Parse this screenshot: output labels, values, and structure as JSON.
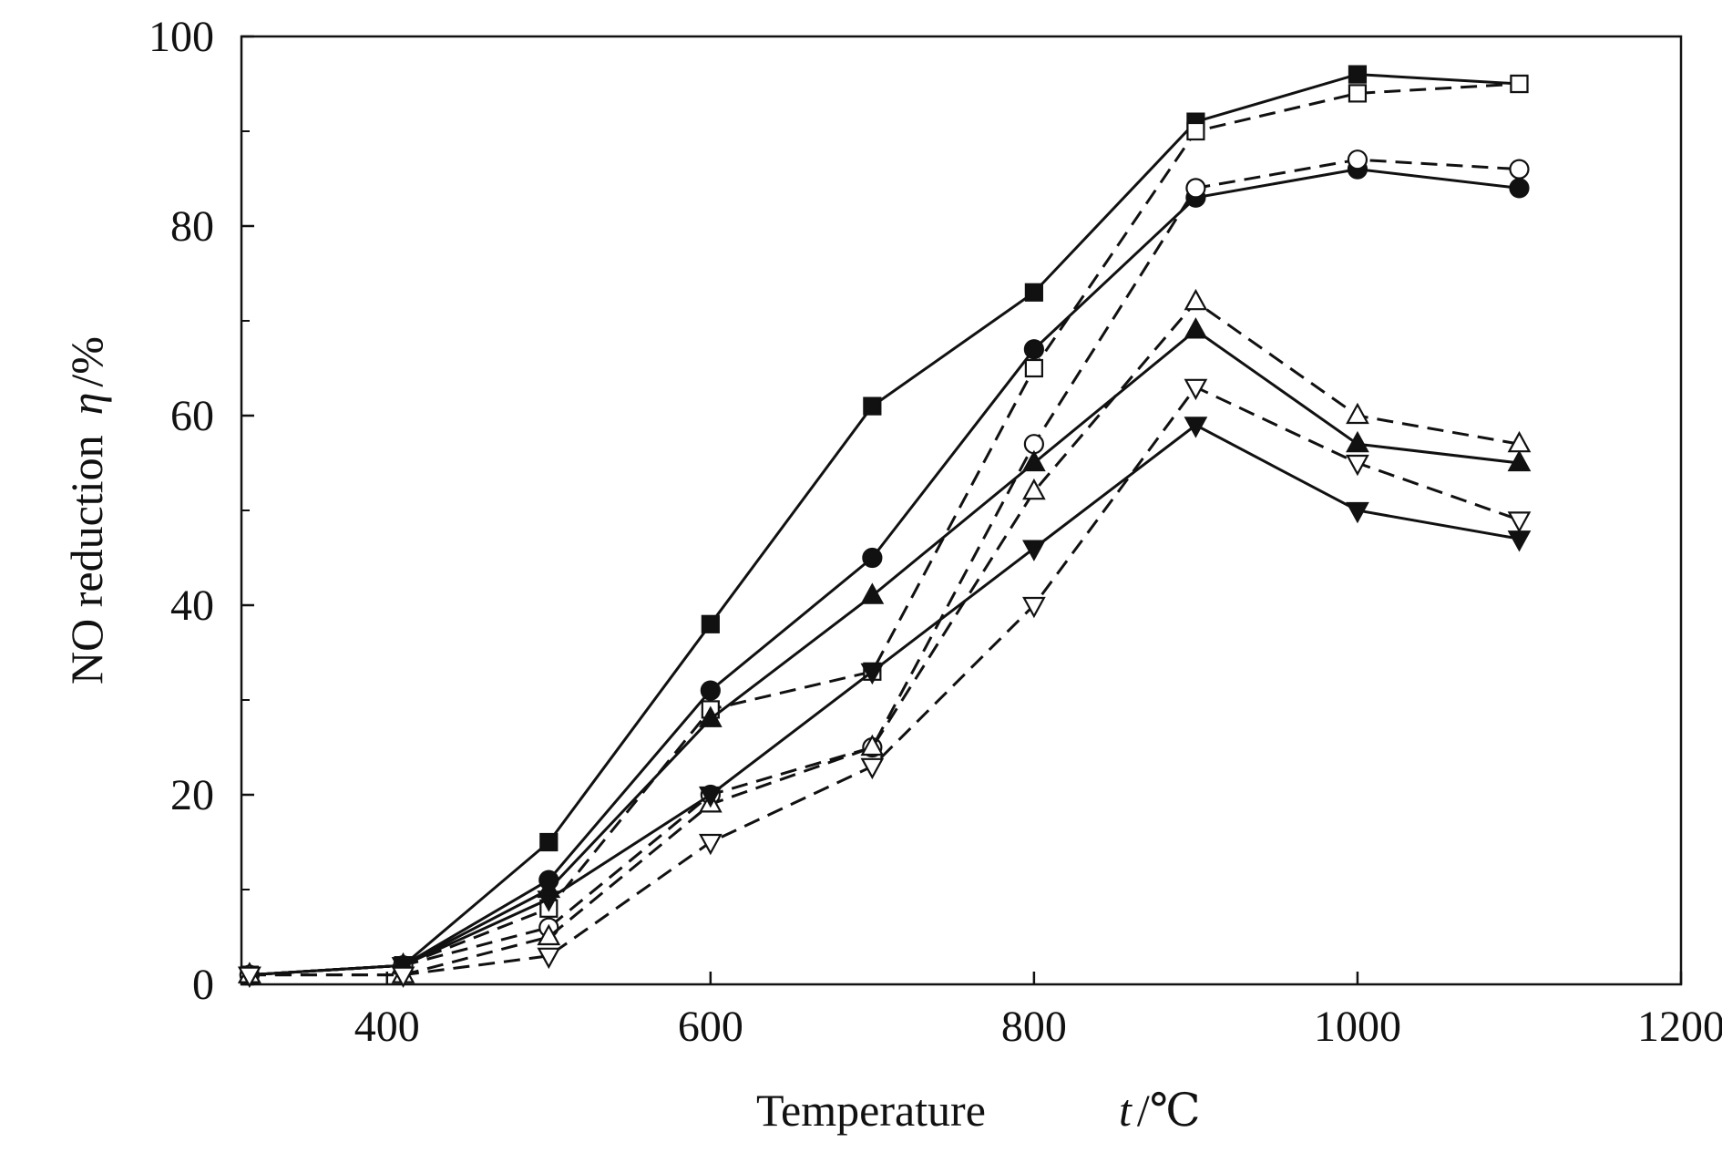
{
  "chart_data": {
    "type": "line",
    "xlabel_parts": {
      "word": "Temperature",
      "symbol": "t",
      "unit": "/℃"
    },
    "ylabel_parts": {
      "word": "NO reduction",
      "symbol": "η",
      "unit": "/%"
    },
    "xlim": [
      310,
      1200
    ],
    "ylim": [
      0,
      100
    ],
    "x_ticks": [
      400,
      600,
      800,
      1000,
      1200
    ],
    "y_ticks": [
      0,
      20,
      40,
      60,
      80,
      100
    ],
    "y_minor_ticks": [
      10,
      30,
      50,
      70,
      90
    ],
    "grid": false,
    "legend": "none",
    "series": [
      {
        "marker": "square",
        "filled": true,
        "dash": false,
        "x": [
          315,
          410,
          500,
          600,
          700,
          800,
          900,
          1000,
          1100
        ],
        "y": [
          1,
          2,
          15,
          38,
          61,
          73,
          91,
          96,
          95
        ]
      },
      {
        "marker": "square",
        "filled": false,
        "dash": true,
        "x": [
          315,
          410,
          500,
          600,
          700,
          800,
          900,
          1000,
          1100
        ],
        "y": [
          1,
          2,
          8,
          29,
          33,
          65,
          90,
          94,
          95
        ]
      },
      {
        "marker": "circle",
        "filled": true,
        "dash": false,
        "x": [
          315,
          410,
          500,
          600,
          700,
          800,
          900,
          1000,
          1100
        ],
        "y": [
          1,
          2,
          11,
          31,
          45,
          67,
          83,
          86,
          84
        ]
      },
      {
        "marker": "circle",
        "filled": false,
        "dash": true,
        "x": [
          315,
          410,
          500,
          600,
          700,
          800,
          900,
          1000,
          1100
        ],
        "y": [
          1,
          2,
          6,
          20,
          25,
          57,
          84,
          87,
          86
        ]
      },
      {
        "marker": "triangle-up",
        "filled": true,
        "dash": false,
        "x": [
          315,
          410,
          500,
          600,
          700,
          800,
          900,
          1000,
          1100
        ],
        "y": [
          1,
          2,
          10,
          28,
          41,
          55,
          69,
          57,
          55
        ]
      },
      {
        "marker": "triangle-up",
        "filled": false,
        "dash": true,
        "x": [
          315,
          410,
          500,
          600,
          700,
          800,
          900,
          1000,
          1100
        ],
        "y": [
          1,
          1,
          5,
          19,
          25,
          52,
          72,
          60,
          57
        ]
      },
      {
        "marker": "triangle-down",
        "filled": true,
        "dash": false,
        "x": [
          315,
          410,
          500,
          600,
          700,
          800,
          900,
          1000,
          1100
        ],
        "y": [
          1,
          2,
          9,
          20,
          33,
          46,
          59,
          50,
          47
        ]
      },
      {
        "marker": "triangle-down",
        "filled": false,
        "dash": true,
        "x": [
          315,
          410,
          500,
          600,
          700,
          800,
          900,
          1000,
          1100
        ],
        "y": [
          1,
          1,
          3,
          15,
          23,
          40,
          63,
          55,
          49
        ]
      }
    ]
  }
}
